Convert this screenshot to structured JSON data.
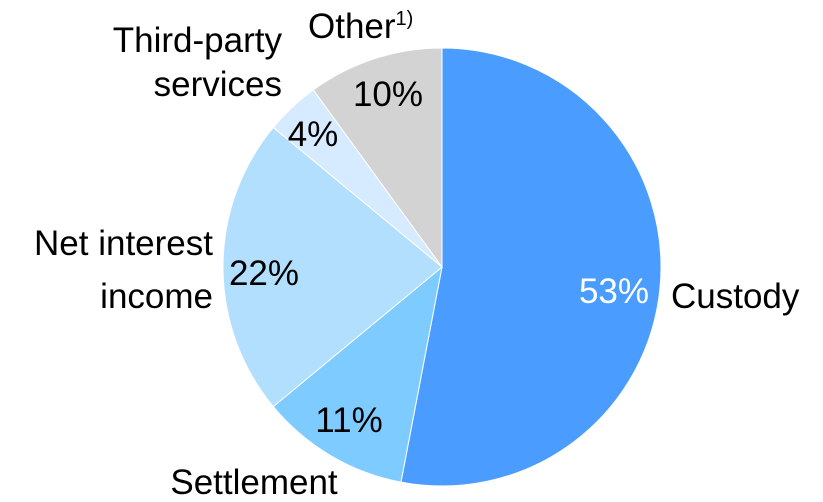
{
  "chart_data": {
    "type": "pie",
    "title": "",
    "slices": [
      {
        "label": "Custody",
        "value": 53,
        "value_label": "53%",
        "color": "#4a9dff"
      },
      {
        "label": "Settlement",
        "value": 11,
        "value_label": "11%",
        "color": "#7ecbff"
      },
      {
        "label": "Net interest income",
        "value": 22,
        "value_label": "22%",
        "color": "#b3dfff"
      },
      {
        "label": "Third-party services",
        "value": 4,
        "value_label": "4%",
        "color": "#d6ebff"
      },
      {
        "label": "Other",
        "label_superscript": "1)",
        "value": 10,
        "value_label": "10%",
        "color": "#d3d3d3"
      }
    ],
    "start_angle": "12 o'clock",
    "direction": "clockwise",
    "legend": "none",
    "labels": {
      "custody": "Custody",
      "settlement": "Settlement",
      "net_interest_line1": "Net interest",
      "net_interest_line2": "income",
      "third_party_line1": "Third-party",
      "third_party_line2": "services",
      "other": "Other",
      "other_sup": "1)"
    }
  }
}
